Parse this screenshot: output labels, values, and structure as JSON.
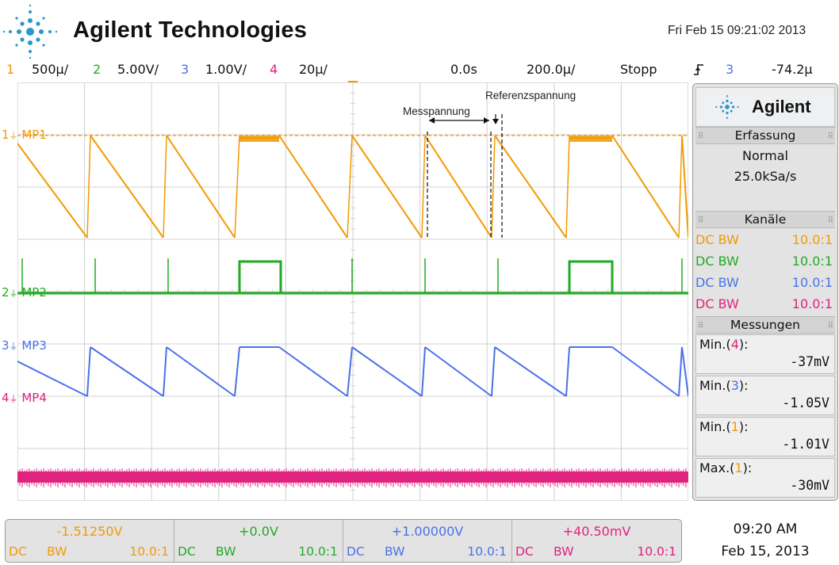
{
  "header": {
    "brand": "Agilent Technologies",
    "datetime": "Fri Feb 15 09:21:02 2013"
  },
  "channel_bar": {
    "ch1_num": "1",
    "ch1_scale": "500µ/",
    "ch2_num": "2",
    "ch2_scale": "5.00V/",
    "ch3_num": "3",
    "ch3_scale": "1.00V/",
    "ch4_num": "4",
    "ch4_scale": "20µ/",
    "time_delay": "0.0s",
    "time_scale": "200.0µ/",
    "run_state": "Stopp",
    "trigger_icon": "rising-edge-icon",
    "trigger_channel": "3",
    "trigger_level": "-74.2µ"
  },
  "colors": {
    "ch1": "#f29a00",
    "ch2": "#22aa22",
    "ch3": "#4a72e8",
    "ch4": "#e0237f",
    "grid": "#c8c8c8",
    "trigger_marker": "#f29a00"
  },
  "traces": {
    "ch1_label": "MP1",
    "ch2_label": "MP2",
    "ch3_label": "MP3",
    "ch4_label": "MP4",
    "ch1_marker": "1",
    "ch2_marker": "2",
    "ch3_marker": "3",
    "ch4_marker": "4"
  },
  "annotations": {
    "messpannung": "Messpannung",
    "referenzspannung": "Referenzspannung"
  },
  "panel": {
    "logo": "Agilent",
    "acq_title": "Erfassung",
    "acq_mode": "Normal",
    "acq_rate": "25.0kSa/s",
    "channels_title": "Kanäle",
    "channels": [
      {
        "coupling": "DC",
        "bw": "BW",
        "probe": "10.0:1"
      },
      {
        "coupling": "DC",
        "bw": "BW",
        "probe": "10.0:1"
      },
      {
        "coupling": "DC",
        "bw": "BW",
        "probe": "10.0:1"
      },
      {
        "coupling": "DC",
        "bw": "BW",
        "probe": "10.0:1"
      }
    ],
    "meas_title": "Messungen",
    "measurements": [
      {
        "name": "Min.",
        "ch": "4",
        "value": "-37mV"
      },
      {
        "name": "Min.",
        "ch": "3",
        "value": "-1.05V"
      },
      {
        "name": "Min.",
        "ch": "1",
        "value": "-1.01V"
      },
      {
        "name": "Max.",
        "ch": "1",
        "value": "-30mV"
      }
    ]
  },
  "bottom_bar": [
    {
      "offset": "-1.51250V",
      "coupling": "DC",
      "bw": "BW",
      "probe": "10.0:1"
    },
    {
      "offset": "+0.0V",
      "coupling": "DC",
      "bw": "BW",
      "probe": "10.0:1"
    },
    {
      "offset": "+1.00000V",
      "coupling": "DC",
      "bw": "BW",
      "probe": "10.0:1"
    },
    {
      "offset": "+40.50mV",
      "coupling": "DC",
      "bw": "BW",
      "probe": "10.0:1"
    }
  ],
  "clock": {
    "time": "09:20 AM",
    "date": "Feb 15, 2013"
  }
}
